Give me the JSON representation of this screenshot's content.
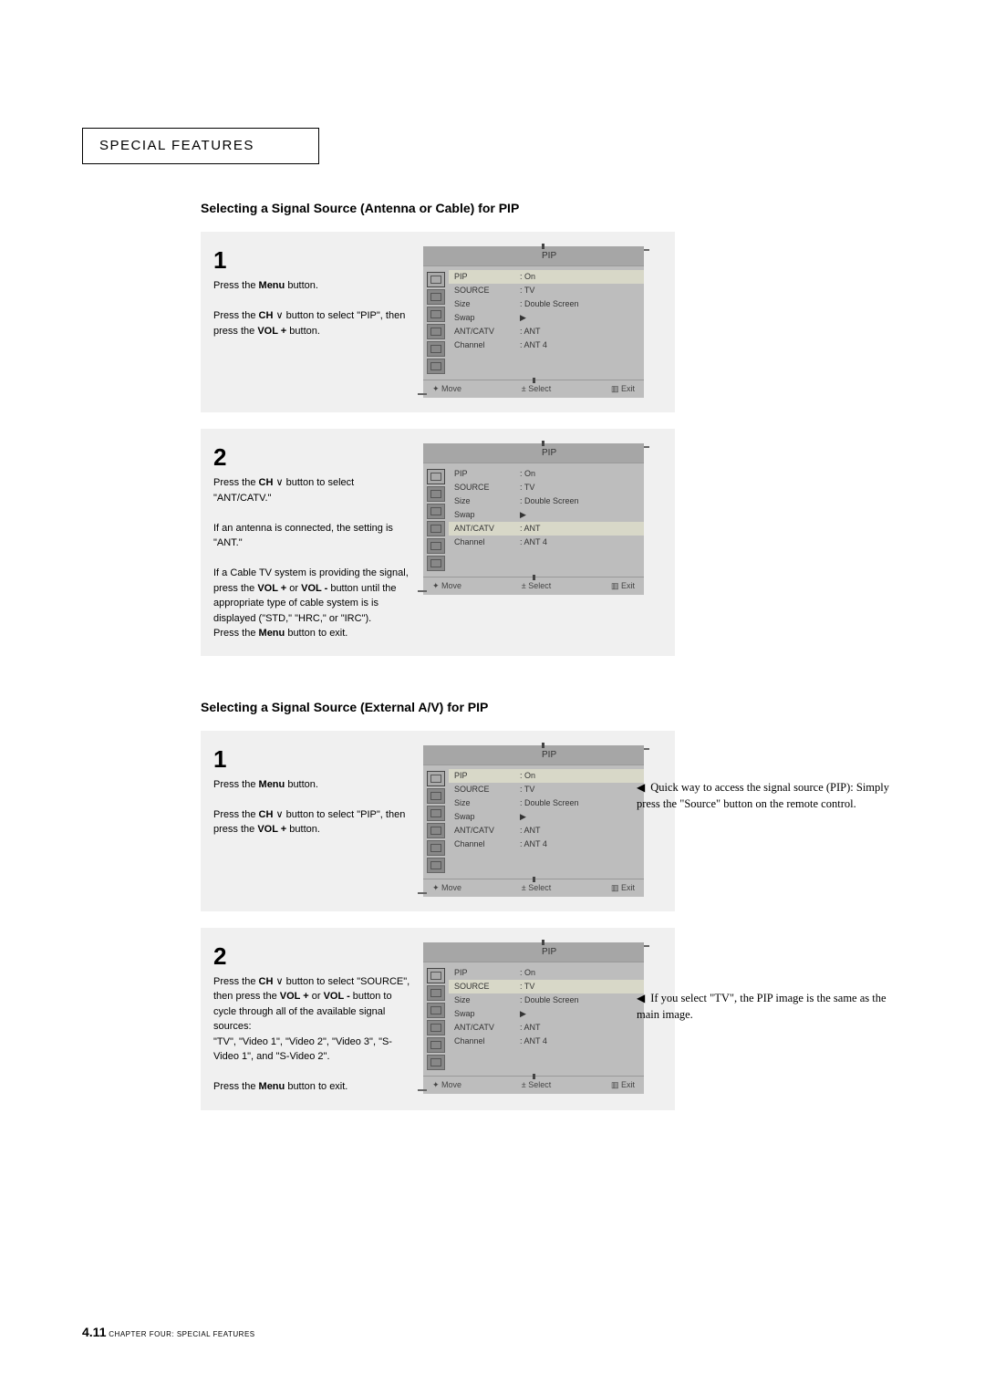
{
  "sectionHeader": "SPECIAL FEATURES",
  "subsectionA": "Selecting a Signal Source (Antenna or Cable) for PIP",
  "subsectionB": "Selecting a Signal Source (External A/V) for PIP",
  "stepsA": [
    {
      "num": "1",
      "html": "Press the <b>Menu</b> button.<br><br>Press the <b>CH</b> <span class='down'>∨</span> button to select \"PIP\", then press the <b>VOL +</b> button.",
      "menu": {
        "title": "PIP",
        "rows": [
          {
            "label": "PIP",
            "val": ": On",
            "hl": true
          },
          {
            "label": "SOURCE",
            "val": ": TV"
          },
          {
            "label": "Size",
            "val": ": Double Screen"
          },
          {
            "label": "Swap",
            "val": "      ▶"
          },
          {
            "label": "ANT/CATV",
            "val": ": ANT"
          },
          {
            "label": "Channel",
            "val": ": ANT 4"
          }
        ],
        "footer": [
          "✦ Move",
          "± Select",
          "▥ Exit"
        ]
      }
    },
    {
      "num": "2",
      "html": "Press the <b>CH</b> <span class='down'>∨</span> button to select \"ANT/CATV.\"<br><br>If an antenna is connected, the setting is \"ANT.\"<br><br>If a Cable TV system is providing the signal, press the <b>VOL +</b> or <b>VOL -</b> button until the appropriate type of cable system is is displayed (\"STD,\" \"HRC,\" or \"IRC\").<br>Press the <b>Menu</b> button to exit.",
      "menu": {
        "title": "PIP",
        "rows": [
          {
            "label": "PIP",
            "val": ": On"
          },
          {
            "label": "SOURCE",
            "val": ": TV"
          },
          {
            "label": "Size",
            "val": ": Double Screen"
          },
          {
            "label": "Swap",
            "val": "      ▶"
          },
          {
            "label": "ANT/CATV",
            "val": ": ANT",
            "hl": true
          },
          {
            "label": "Channel",
            "val": ": ANT 4"
          }
        ],
        "footer": [
          "✦ Move",
          "± Select",
          "▥ Exit"
        ]
      }
    }
  ],
  "stepsB": [
    {
      "num": "1",
      "html": "Press the <b>Menu</b> button.<br><br>Press the <b>CH</b> <span class='down'>∨</span> button to select \"PIP\", then press the <b>VOL +</b> button.",
      "menu": {
        "title": "PIP",
        "rows": [
          {
            "label": "PIP",
            "val": ": On",
            "hl": true
          },
          {
            "label": "SOURCE",
            "val": ": TV"
          },
          {
            "label": "Size",
            "val": ": Double Screen"
          },
          {
            "label": "Swap",
            "val": "      ▶"
          },
          {
            "label": "ANT/CATV",
            "val": ": ANT"
          },
          {
            "label": "Channel",
            "val": ": ANT 4"
          }
        ],
        "footer": [
          "✦ Move",
          "± Select",
          "▥ Exit"
        ]
      }
    },
    {
      "num": "2",
      "html": "Press the <b>CH</b> <span class='down'>∨</span> button to select \"SOURCE\", then press the <b>VOL +</b> or <b>VOL -</b> button to cycle through all of the available signal sources:<br>\"TV\", \"Video 1\", \"Video 2\", \"Video 3\", \"S-Video 1\", and \"S-Video 2\".<br><br>Press the <b>Menu</b> button to exit.",
      "menu": {
        "title": "PIP",
        "rows": [
          {
            "label": "PIP",
            "val": ": On"
          },
          {
            "label": "SOURCE",
            "val": ": TV",
            "hl": true
          },
          {
            "label": "Size",
            "val": ": Double Screen"
          },
          {
            "label": "Swap",
            "val": "      ▶"
          },
          {
            "label": "ANT/CATV",
            "val": ": ANT"
          },
          {
            "label": "Channel",
            "val": ": ANT 4"
          }
        ],
        "footer": [
          "✦ Move",
          "± Select",
          "▥ Exit"
        ]
      }
    }
  ],
  "noteB1": "Quick way to access the signal source (PIP): Simply press the \"Source\" button on the remote control.",
  "noteB2": "If you select \"TV\", the PIP image is the same as the main image.",
  "noteB1Top": 855,
  "noteB2Top": 1086,
  "footer": {
    "pageNum": "4.11",
    "text": " CHAPTER FOUR: SPECIAL FEATURES"
  }
}
